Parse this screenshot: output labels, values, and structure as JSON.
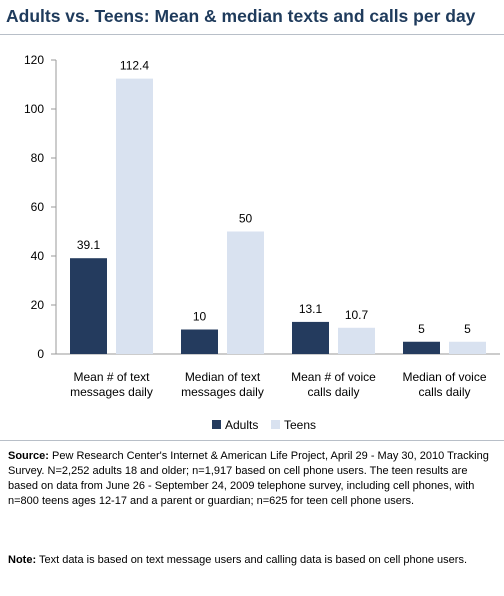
{
  "colors": {
    "Adults": "#243b5e",
    "Teens": "#d9e2f0",
    "title": "#1f3b5c",
    "axis": "#9a9a9a"
  },
  "chart_data": {
    "type": "bar",
    "title": "Adults vs. Teens: Mean & median texts and calls per day",
    "categories": [
      [
        "Mean # of text",
        "messages daily"
      ],
      [
        "Median of text",
        "messages daily"
      ],
      [
        "Mean # of voice",
        "calls daily"
      ],
      [
        "Median of voice",
        "calls daily"
      ]
    ],
    "series": [
      {
        "name": "Adults",
        "values": [
          39.1,
          10,
          13.1,
          5
        ],
        "labels": [
          "39.1",
          "10",
          "13.1",
          "5"
        ]
      },
      {
        "name": "Teens",
        "values": [
          112.4,
          50,
          10.7,
          5
        ],
        "labels": [
          "112.4",
          "50",
          "10.7",
          "5"
        ]
      }
    ],
    "ylim": [
      0,
      120
    ],
    "yticks": [
      0,
      20,
      40,
      60,
      80,
      100,
      120
    ],
    "xlabel": "",
    "ylabel": "",
    "grid": false,
    "legend": "bottom"
  },
  "source": {
    "label": "Source:",
    "text": " Pew Research Center's Internet & American Life Project, April 29 - May 30, 2010 Tracking Survey. N=2,252 adults 18 and older; n=1,917 based on cell phone users. The teen results are based on data from June 26 - September 24, 2009 telephone survey, including cell phones, with n=800 teens ages 12-17 and a parent or guardian; n=625 for teen cell phone users."
  },
  "note": {
    "label": "Note:",
    "text": " Text data is based on text message users and calling data is based on cell phone users."
  }
}
